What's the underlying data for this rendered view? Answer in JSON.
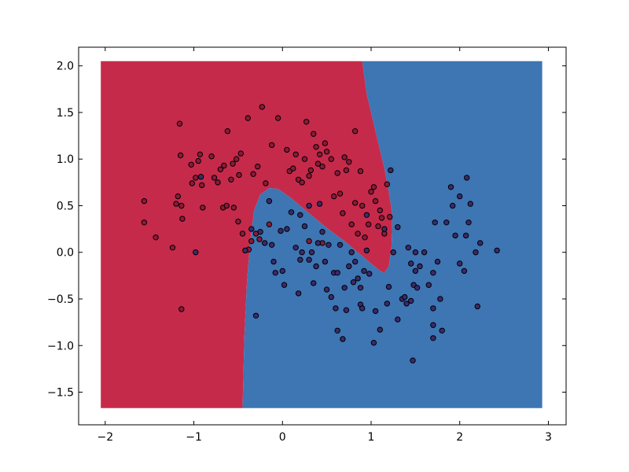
{
  "chart_data": {
    "type": "scatter",
    "title": "",
    "xlabel": "",
    "ylabel": "",
    "xlim": [
      -2.3,
      3.2
    ],
    "ylim": [
      -1.85,
      2.2
    ],
    "xticks": [
      -2,
      -1,
      0,
      1,
      2,
      3
    ],
    "yticks": [
      -1.5,
      -1.0,
      -0.5,
      0.0,
      0.5,
      1.0,
      1.5,
      2.0
    ],
    "xtick_labels": [
      "−2",
      "−1",
      "0",
      "1",
      "2",
      "3"
    ],
    "ytick_labels": [
      "−1.5",
      "−1.0",
      "−0.5",
      "0.0",
      "0.5",
      "1.0",
      "1.5",
      "2.0"
    ],
    "grid": false,
    "decision_region": {
      "x_range": [
        -2.05,
        2.93
      ],
      "y_range": [
        -1.67,
        2.05
      ],
      "class_0_color": "#c62a4a",
      "class_1_color": "#3d76b2",
      "boundary": [
        [
          -0.45,
          -1.67
        ],
        [
          -0.43,
          -0.9
        ],
        [
          -0.4,
          -0.3
        ],
        [
          -0.36,
          0.15
        ],
        [
          -0.32,
          0.45
        ],
        [
          -0.25,
          0.62
        ],
        [
          -0.15,
          0.69
        ],
        [
          -0.05,
          0.68
        ],
        [
          0.1,
          0.58
        ],
        [
          0.3,
          0.42
        ],
        [
          0.5,
          0.26
        ],
        [
          0.7,
          0.12
        ],
        [
          0.85,
          0.0
        ],
        [
          1.0,
          -0.12
        ],
        [
          1.1,
          -0.2
        ],
        [
          1.15,
          -0.22
        ],
        [
          1.2,
          -0.15
        ],
        [
          1.23,
          0.05
        ],
        [
          1.24,
          0.4
        ],
        [
          1.2,
          0.65
        ],
        [
          1.15,
          0.9
        ],
        [
          1.05,
          1.3
        ],
        [
          0.95,
          1.7
        ],
        [
          0.9,
          2.05
        ]
      ]
    },
    "series": [
      {
        "class": 0,
        "color": "#8b1a3a",
        "points": [
          [
            -1.56,
            0.55
          ],
          [
            -1.56,
            0.32
          ],
          [
            -1.43,
            0.16
          ],
          [
            -1.24,
            0.05
          ],
          [
            -1.2,
            0.52
          ],
          [
            -1.18,
            0.6
          ],
          [
            -1.16,
            1.38
          ],
          [
            -1.15,
            1.04
          ],
          [
            -1.13,
            0.36
          ],
          [
            -1.14,
            0.5
          ],
          [
            -1.14,
            -0.61
          ],
          [
            -1.03,
            0.94
          ],
          [
            -1.02,
            0.74
          ],
          [
            -0.98,
            0.8
          ],
          [
            -0.95,
            0.98
          ],
          [
            -0.93,
            1.05
          ],
          [
            -0.91,
            0.72
          ],
          [
            -0.9,
            0.48
          ],
          [
            -0.8,
            1.03
          ],
          [
            -0.77,
            0.8
          ],
          [
            -0.73,
            0.75
          ],
          [
            -0.7,
            0.89
          ],
          [
            -0.67,
            0.48
          ],
          [
            -0.66,
            0.93
          ],
          [
            -0.63,
            0.5
          ],
          [
            -0.62,
            1.3
          ],
          [
            -0.58,
            0.78
          ],
          [
            -0.56,
            0.95
          ],
          [
            -0.55,
            0.48
          ],
          [
            -0.52,
            1.0
          ],
          [
            -0.49,
            0.83
          ],
          [
            -0.47,
            1.06
          ],
          [
            -0.45,
            0.2
          ],
          [
            -0.39,
            1.44
          ],
          [
            -0.38,
            0.03
          ],
          [
            -0.35,
            0.12
          ],
          [
            -0.33,
            0.84
          ],
          [
            -0.3,
            0.2
          ],
          [
            -0.28,
            0.92
          ],
          [
            -0.26,
            0.14
          ],
          [
            -0.23,
            1.56
          ],
          [
            -0.19,
            0.74
          ],
          [
            -0.15,
            0.3
          ],
          [
            -0.12,
            1.15
          ],
          [
            -0.05,
            1.44
          ],
          [
            0.05,
            1.1
          ],
          [
            0.08,
            0.87
          ],
          [
            0.12,
            0.9
          ],
          [
            0.15,
            1.05
          ],
          [
            0.18,
            0.78
          ],
          [
            0.22,
            0.75
          ],
          [
            0.25,
            1.0
          ],
          [
            0.27,
            1.4
          ],
          [
            0.3,
            0.82
          ],
          [
            0.32,
            0.88
          ],
          [
            0.35,
            1.27
          ],
          [
            0.38,
            1.13
          ],
          [
            0.4,
            0.95
          ],
          [
            0.42,
            1.05
          ],
          [
            0.45,
            0.92
          ],
          [
            0.48,
            1.17
          ],
          [
            0.5,
            1.08
          ],
          [
            0.55,
            1.0
          ],
          [
            0.58,
            0.6
          ],
          [
            0.62,
            0.85
          ],
          [
            0.65,
            0.63
          ],
          [
            0.68,
            0.42
          ],
          [
            0.7,
            1.02
          ],
          [
            0.72,
            0.88
          ],
          [
            0.75,
            0.97
          ],
          [
            0.78,
            0.3
          ],
          [
            0.82,
            0.53
          ],
          [
            0.82,
            1.3
          ],
          [
            0.85,
            0.2
          ],
          [
            0.88,
            0.87
          ],
          [
            0.9,
            0.5
          ],
          [
            0.93,
            0.16
          ],
          [
            0.97,
            0.3
          ],
          [
            1.0,
            0.65
          ],
          [
            1.03,
            0.7
          ],
          [
            1.05,
            0.55
          ],
          [
            1.08,
            0.28
          ],
          [
            1.1,
            0.45
          ],
          [
            1.12,
            0.37
          ],
          [
            1.15,
            0.2
          ],
          [
            1.18,
            0.73
          ],
          [
            1.21,
            0.38
          ],
          [
            0.45,
            0.1
          ],
          [
            0.3,
            0.12
          ],
          [
            -0.5,
            0.33
          ]
        ]
      },
      {
        "class": 1,
        "color": "#3a2a6e",
        "points": [
          [
            -0.98,
            0.0
          ],
          [
            -0.92,
            0.81
          ],
          [
            -0.42,
            0.02
          ],
          [
            -0.35,
            0.25
          ],
          [
            -0.3,
            -0.68
          ],
          [
            -0.25,
            0.22
          ],
          [
            -0.2,
            0.1
          ],
          [
            -0.15,
            0.55
          ],
          [
            -0.12,
            0.08
          ],
          [
            -0.1,
            -0.1
          ],
          [
            -0.08,
            -0.22
          ],
          [
            -0.02,
            0.23
          ],
          [
            0.0,
            -0.2
          ],
          [
            0.02,
            -0.35
          ],
          [
            0.05,
            0.25
          ],
          [
            0.1,
            0.43
          ],
          [
            0.15,
            0.05
          ],
          [
            0.18,
            -0.44
          ],
          [
            0.2,
            0.4
          ],
          [
            0.2,
            -0.08
          ],
          [
            0.22,
            0.0
          ],
          [
            0.25,
            0.28
          ],
          [
            0.3,
            0.5
          ],
          [
            0.3,
            -0.08
          ],
          [
            0.33,
            0.0
          ],
          [
            0.35,
            -0.33
          ],
          [
            0.38,
            -0.15
          ],
          [
            0.4,
            0.1
          ],
          [
            0.42,
            0.52
          ],
          [
            0.45,
            0.22
          ],
          [
            0.48,
            -0.1
          ],
          [
            0.5,
            -0.4
          ],
          [
            0.52,
            0.08
          ],
          [
            0.55,
            -0.48
          ],
          [
            0.58,
            -0.22
          ],
          [
            0.6,
            -0.6
          ],
          [
            0.62,
            -0.22
          ],
          [
            0.62,
            -0.84
          ],
          [
            0.65,
            0.08
          ],
          [
            0.68,
            -0.93
          ],
          [
            0.7,
            -0.38
          ],
          [
            0.72,
            -0.62
          ],
          [
            0.75,
            -0.15
          ],
          [
            0.78,
            0.0
          ],
          [
            0.8,
            -0.32
          ],
          [
            0.82,
            -0.1
          ],
          [
            0.85,
            -0.28
          ],
          [
            0.88,
            -0.56
          ],
          [
            0.88,
            -0.38
          ],
          [
            0.9,
            -0.6
          ],
          [
            0.92,
            -0.2
          ],
          [
            0.95,
            0.02
          ],
          [
            0.98,
            -0.23
          ],
          [
            1.03,
            -0.97
          ],
          [
            1.05,
            -0.63
          ],
          [
            1.1,
            -0.83
          ],
          [
            1.15,
            0.25
          ],
          [
            1.18,
            -0.55
          ],
          [
            1.2,
            -0.37
          ],
          [
            1.25,
            0.0
          ],
          [
            1.3,
            -0.72
          ],
          [
            1.3,
            0.27
          ],
          [
            1.35,
            -0.5
          ],
          [
            1.38,
            -0.48
          ],
          [
            1.4,
            -0.55
          ],
          [
            1.42,
            0.05
          ],
          [
            1.45,
            -0.52
          ],
          [
            1.45,
            -0.12
          ],
          [
            1.47,
            -1.16
          ],
          [
            1.48,
            -0.35
          ],
          [
            1.5,
            0.0
          ],
          [
            1.5,
            -0.2
          ],
          [
            1.52,
            -0.38
          ],
          [
            1.55,
            -0.15
          ],
          [
            1.6,
            0.0
          ],
          [
            1.65,
            -0.35
          ],
          [
            1.7,
            -0.22
          ],
          [
            1.7,
            -0.6
          ],
          [
            1.7,
            -0.78
          ],
          [
            1.7,
            -0.92
          ],
          [
            1.72,
            0.32
          ],
          [
            1.75,
            -0.1
          ],
          [
            1.78,
            -0.5
          ],
          [
            1.8,
            -0.84
          ],
          [
            1.85,
            0.32
          ],
          [
            1.9,
            0.7
          ],
          [
            1.92,
            0.5
          ],
          [
            1.95,
            0.18
          ],
          [
            2.0,
            0.6
          ],
          [
            2.0,
            -0.12
          ],
          [
            2.05,
            -0.2
          ],
          [
            2.07,
            0.18
          ],
          [
            2.08,
            0.8
          ],
          [
            2.1,
            0.32
          ],
          [
            2.12,
            0.52
          ],
          [
            2.18,
            0.0
          ],
          [
            2.2,
            -0.58
          ],
          [
            2.23,
            0.1
          ],
          [
            2.42,
            0.02
          ],
          [
            1.22,
            0.88
          ],
          [
            0.95,
            0.4
          ]
        ]
      }
    ]
  }
}
